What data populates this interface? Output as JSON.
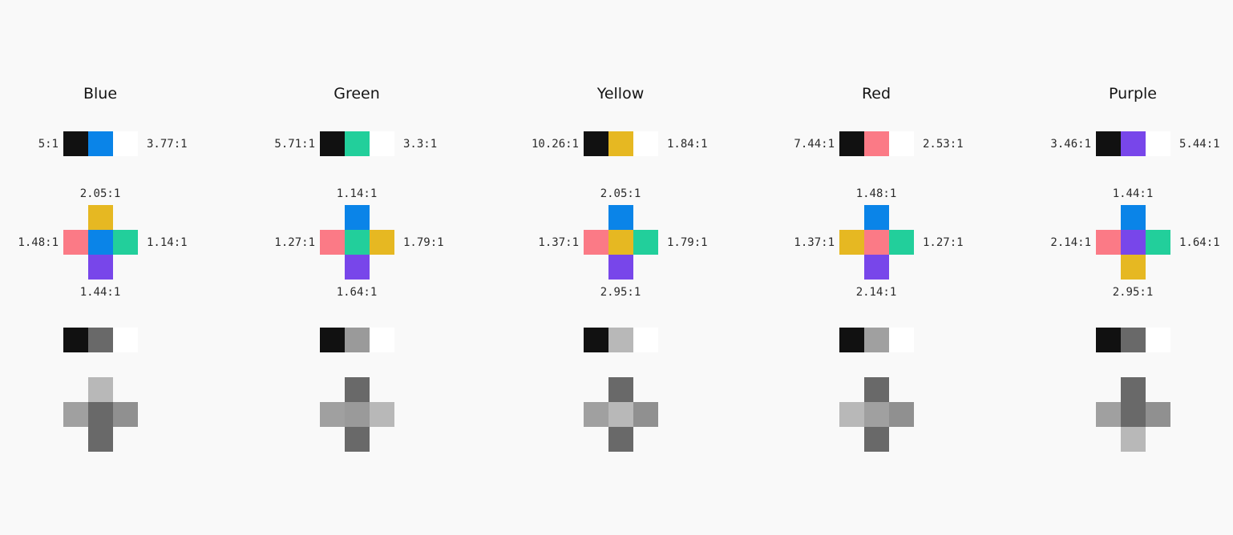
{
  "columns": [
    {
      "title": "Blue",
      "color": "#0a84e8",
      "pair": {
        "left": "5:1",
        "right": "3.77:1"
      },
      "cross": {
        "top": "2.05:1",
        "left": "1.48:1",
        "right": "1.14:1",
        "bottom": "1.44:1",
        "colors": {
          "top": "#e6b822",
          "left": "#fb7a86",
          "center": "#0a84e8",
          "right": "#22cf9b",
          "bottom": "#7846ea"
        }
      },
      "gray_pair_color": "#696969",
      "gray_cross": {
        "top": "#b8b8b8",
        "left": "#a0a0a0",
        "center": "#696969",
        "right": "#909090",
        "bottom": "#696969"
      }
    },
    {
      "title": "Green",
      "color": "#22cf9b",
      "pair": {
        "left": "5.71:1",
        "right": "3.3:1"
      },
      "cross": {
        "top": "1.14:1",
        "left": "1.27:1",
        "right": "1.79:1",
        "bottom": "1.64:1",
        "colors": {
          "top": "#0a84e8",
          "left": "#fb7a86",
          "center": "#22cf9b",
          "right": "#e6b822",
          "bottom": "#7846ea"
        }
      },
      "gray_pair_color": "#9a9a9a",
      "gray_cross": {
        "top": "#696969",
        "left": "#a0a0a0",
        "center": "#9a9a9a",
        "right": "#b8b8b8",
        "bottom": "#696969"
      }
    },
    {
      "title": "Yellow",
      "color": "#e6b822",
      "pair": {
        "left": "10.26:1",
        "right": "1.84:1"
      },
      "cross": {
        "top": "2.05:1",
        "left": "1.37:1",
        "right": "1.79:1",
        "bottom": "2.95:1",
        "colors": {
          "top": "#0a84e8",
          "left": "#fb7a86",
          "center": "#e6b822",
          "right": "#22cf9b",
          "bottom": "#7846ea"
        }
      },
      "gray_pair_color": "#b8b8b8",
      "gray_cross": {
        "top": "#696969",
        "left": "#a0a0a0",
        "center": "#b8b8b8",
        "right": "#909090",
        "bottom": "#696969"
      }
    },
    {
      "title": "Red",
      "color": "#fb7a86",
      "pair": {
        "left": "7.44:1",
        "right": "2.53:1"
      },
      "cross": {
        "top": "1.48:1",
        "left": "1.37:1",
        "right": "1.27:1",
        "bottom": "2.14:1",
        "colors": {
          "top": "#0a84e8",
          "left": "#e6b822",
          "center": "#fb7a86",
          "right": "#22cf9b",
          "bottom": "#7846ea"
        }
      },
      "gray_pair_color": "#a0a0a0",
      "gray_cross": {
        "top": "#696969",
        "left": "#b8b8b8",
        "center": "#a0a0a0",
        "right": "#909090",
        "bottom": "#696969"
      }
    },
    {
      "title": "Purple",
      "color": "#7846ea",
      "pair": {
        "left": "3.46:1",
        "right": "5.44:1"
      },
      "cross": {
        "top": "1.44:1",
        "left": "2.14:1",
        "right": "1.64:1",
        "bottom": "2.95:1",
        "colors": {
          "top": "#0a84e8",
          "left": "#fb7a86",
          "center": "#7846ea",
          "right": "#22cf9b",
          "bottom": "#e6b822"
        }
      },
      "gray_pair_color": "#696969",
      "gray_cross": {
        "top": "#696969",
        "left": "#a0a0a0",
        "center": "#696969",
        "right": "#909090",
        "bottom": "#b8b8b8"
      }
    }
  ],
  "black": "#111111",
  "white": "#ffffff"
}
